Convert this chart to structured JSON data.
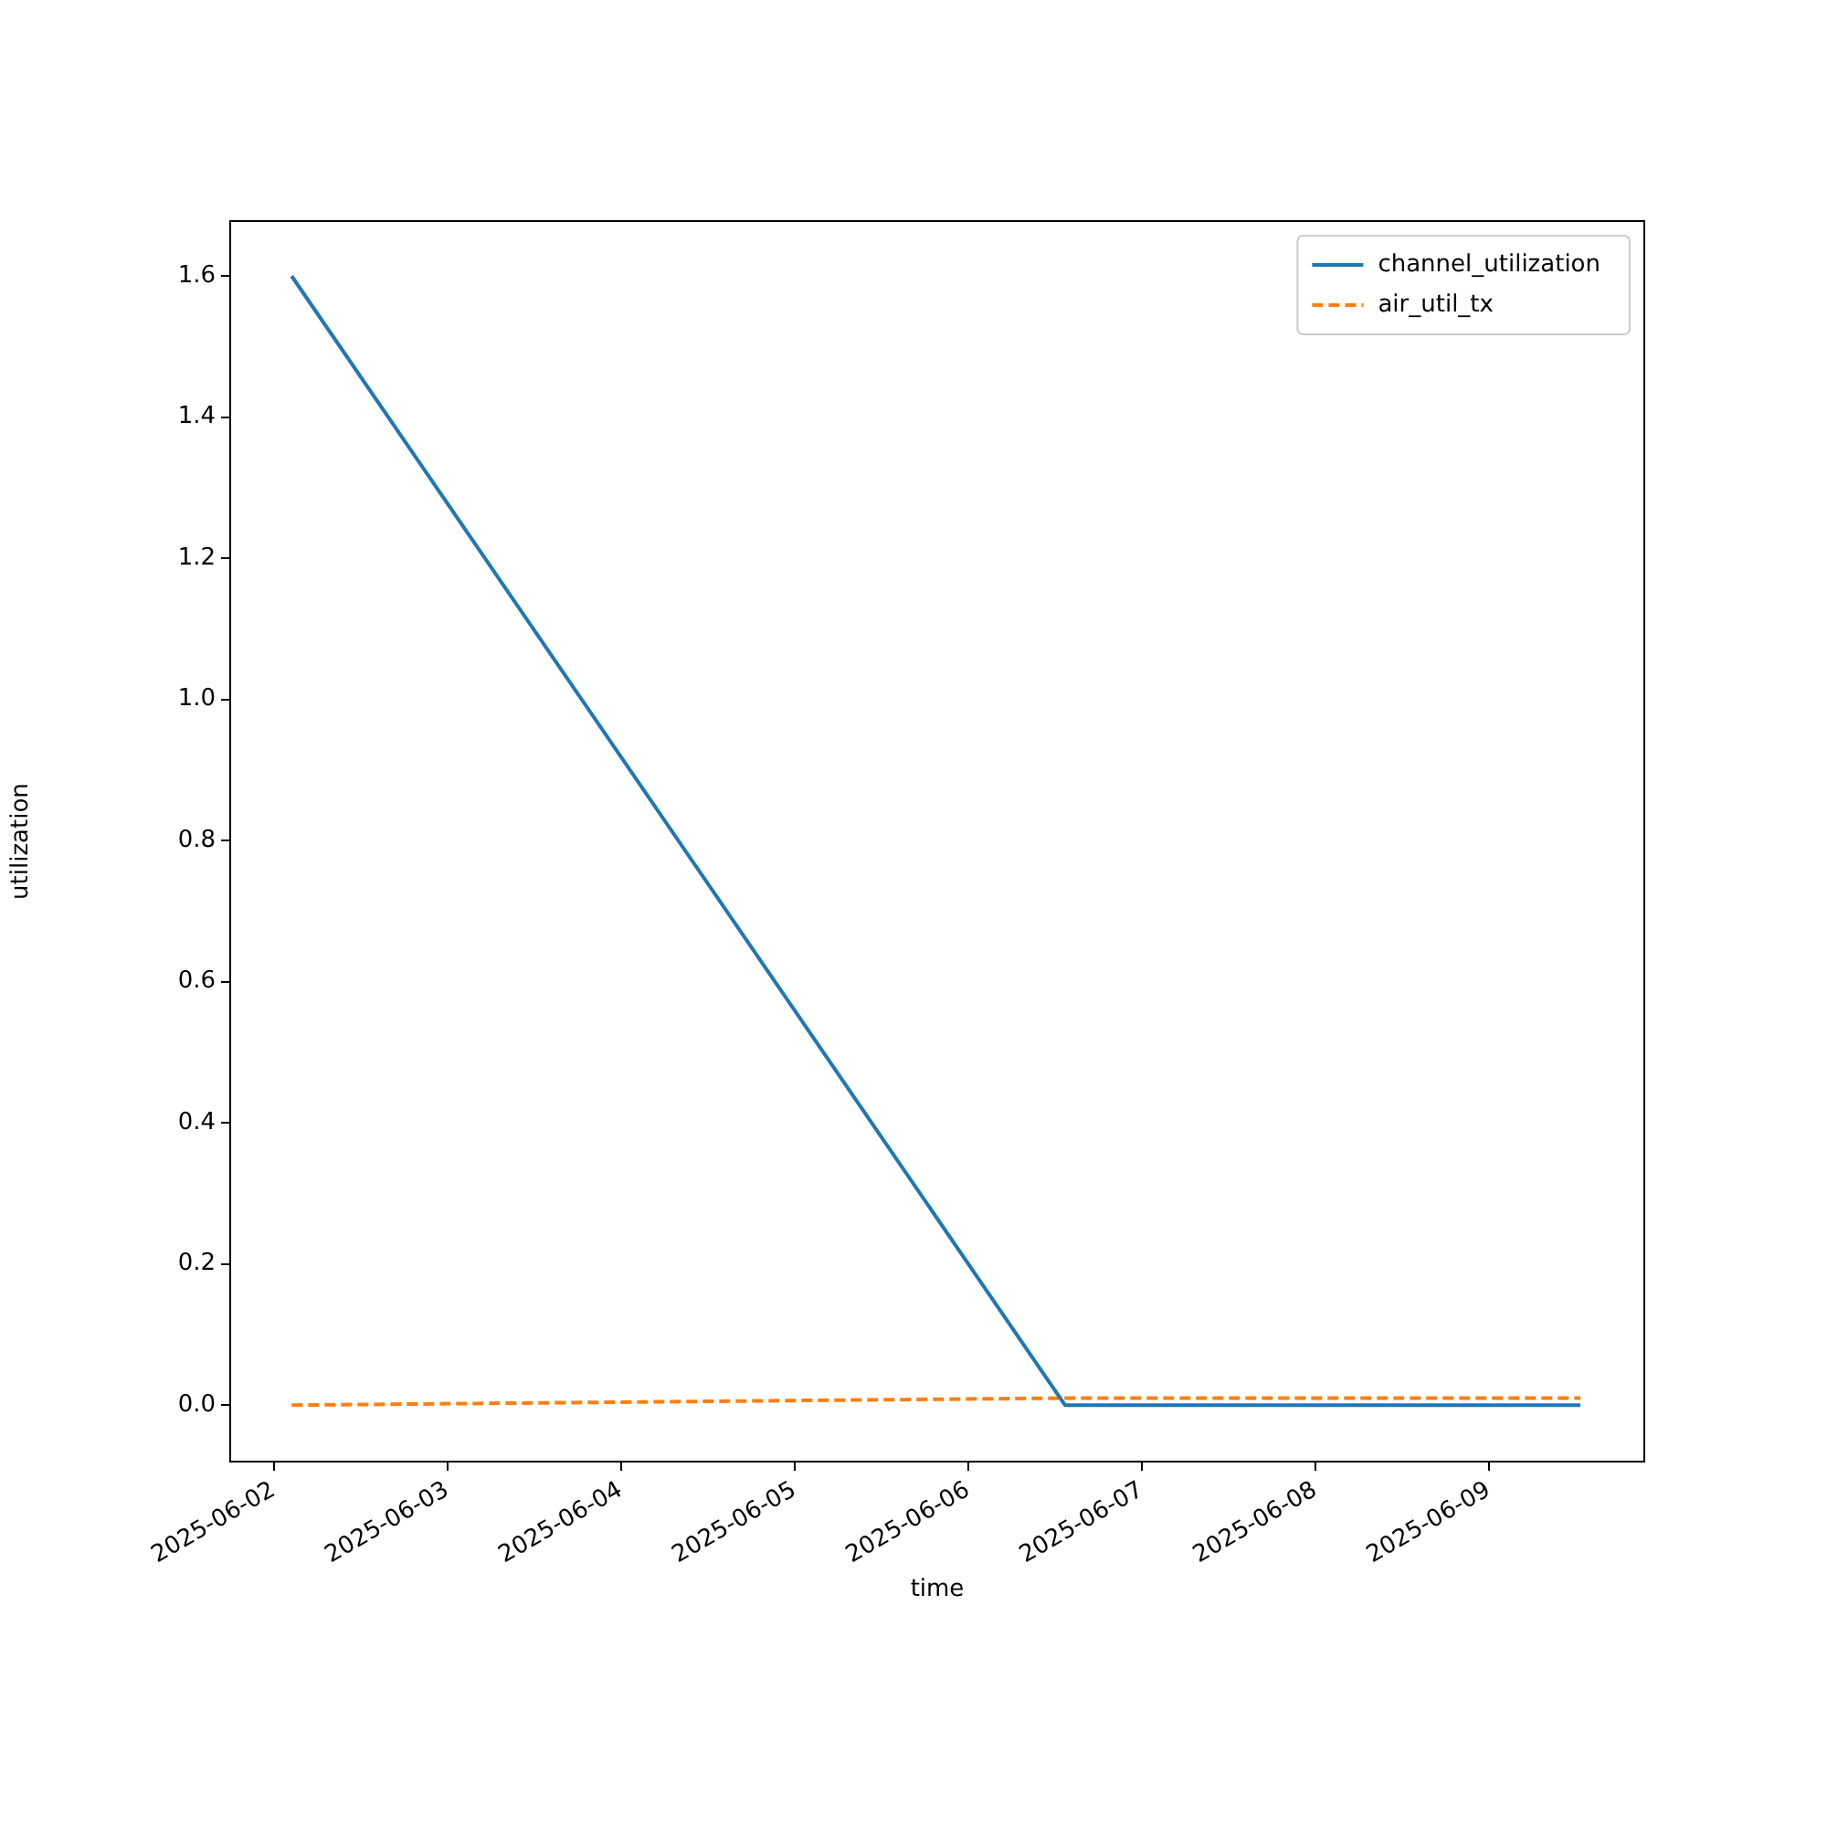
{
  "chart_data": {
    "type": "line",
    "xlabel": "time",
    "ylabel": "utilization",
    "xlim": [
      "2025-06-01T18:00",
      "2025-06-09T21:30"
    ],
    "xticks": [
      "2025-06-02",
      "2025-06-03",
      "2025-06-04",
      "2025-06-05",
      "2025-06-06",
      "2025-06-07",
      "2025-06-08",
      "2025-06-09"
    ],
    "ylim": [
      -0.08,
      1.678
    ],
    "yticks": [
      {
        "value": 0,
        "label": "0.0"
      },
      0.2,
      0.4,
      0.6,
      0.8,
      {
        "value": 1,
        "label": "1.0"
      },
      1.2,
      1.4,
      1.6
    ],
    "grid": false,
    "legend": "top right",
    "series": [
      {
        "name": "channel_utilization",
        "color": "#1f77b4",
        "line_style": "solid",
        "x": [
          "2025-06-02T02:30",
          "2025-06-06T13:25",
          "2025-06-09T12:40"
        ],
        "values": [
          1.6,
          0.0,
          0.0
        ]
      },
      {
        "name": "air_util_tx",
        "color": "#ff7f0e",
        "line_style": "dashed",
        "x": [
          "2025-06-02T02:30",
          "2025-06-06T13:25",
          "2025-06-09T12:40"
        ],
        "values": [
          0.0,
          0.01,
          0.01
        ]
      }
    ]
  }
}
